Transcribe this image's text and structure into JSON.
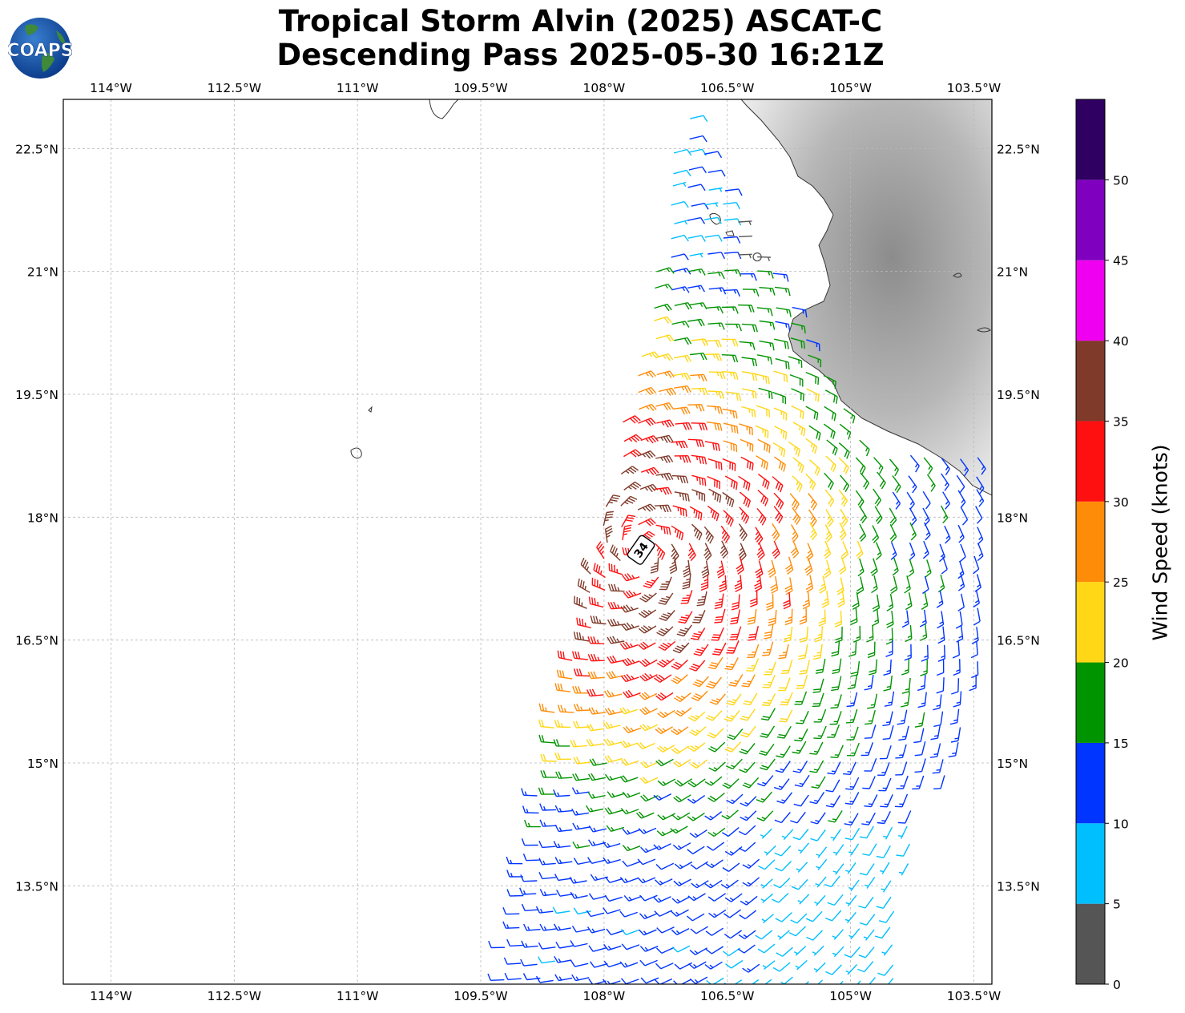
{
  "header": {
    "title_line1": "Tropical Storm Alvin (2025) ASCAT-C",
    "title_line2": "Descending Pass 2025-05-30 16:21Z",
    "logo_text": "COAPS"
  },
  "map": {
    "lon_ticks": [
      "114°W",
      "112.5°W",
      "111°W",
      "109.5°W",
      "108°W",
      "106.5°W",
      "105°W",
      "103.5°W"
    ],
    "lat_ticks": [
      "22.5°N",
      "21°N",
      "19.5°N",
      "18°N",
      "16.5°N",
      "15°N",
      "13.5°N"
    ],
    "lon_values": [
      -114,
      -112.5,
      -111,
      -109.5,
      -108,
      -106.5,
      -105,
      -103.5
    ],
    "lat_values": [
      22.5,
      21,
      19.5,
      18,
      16.5,
      15,
      13.5
    ],
    "lon_range": [
      -114.58,
      -103.28
    ],
    "lat_range": [
      12.3,
      23.1
    ],
    "storm_marker_label": "34",
    "storm_center": {
      "lon": -107.55,
      "lat": 17.6
    },
    "grid": true
  },
  "colorbar": {
    "label": "Wind Speed (knots)",
    "ticks": [
      "0",
      "5",
      "10",
      "15",
      "20",
      "25",
      "30",
      "35",
      "40",
      "45",
      "50"
    ],
    "bins": [
      {
        "min": 0,
        "max": 5,
        "color": "#555555"
      },
      {
        "min": 5,
        "max": 10,
        "color": "#00bfff"
      },
      {
        "min": 10,
        "max": 15,
        "color": "#0034ff"
      },
      {
        "min": 15,
        "max": 20,
        "color": "#009400"
      },
      {
        "min": 20,
        "max": 25,
        "color": "#ffd716"
      },
      {
        "min": 25,
        "max": 30,
        "color": "#ff8c08"
      },
      {
        "min": 30,
        "max": 35,
        "color": "#ff1010"
      },
      {
        "min": 35,
        "max": 40,
        "color": "#7f3a2a"
      },
      {
        "min": 40,
        "max": 45,
        "color": "#f000f0"
      },
      {
        "min": 45,
        "max": 50,
        "color": "#8000bf"
      },
      {
        "min": 50,
        "max": 55,
        "color": "#2f0061"
      }
    ]
  }
}
